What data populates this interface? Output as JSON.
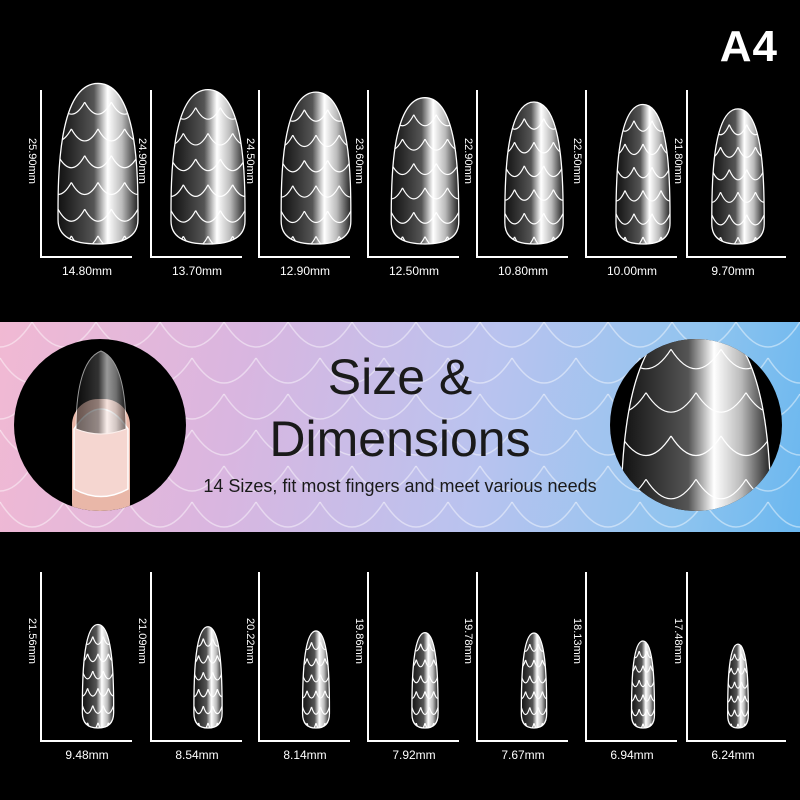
{
  "badge": "A4",
  "banner": {
    "title_line1": "Size &",
    "title_line2": "Dimensions",
    "subtitle": "14 Sizes, fit most fingers and meet various needs",
    "gradient_colors": [
      "#f1b9d3",
      "#b9c3ef",
      "#6ab7ef"
    ]
  },
  "top_row": [
    {
      "height": "25.90mm",
      "width": "14.80mm",
      "h": 25.9,
      "w": 14.8
    },
    {
      "height": "24.90mm",
      "width": "13.70mm",
      "h": 24.9,
      "w": 13.7
    },
    {
      "height": "24.50mm",
      "width": "12.90mm",
      "h": 24.5,
      "w": 12.9
    },
    {
      "height": "23.60mm",
      "width": "12.50mm",
      "h": 23.6,
      "w": 12.5
    },
    {
      "height": "22.90mm",
      "width": "10.80mm",
      "h": 22.9,
      "w": 10.8
    },
    {
      "height": "22.50mm",
      "width": "10.00mm",
      "h": 22.5,
      "w": 10.0
    },
    {
      "height": "21.80mm",
      "width": "9.70mm",
      "h": 21.8,
      "w": 9.7
    }
  ],
  "bottom_row": [
    {
      "height": "21.56mm",
      "width": "9.48mm",
      "h": 21.56,
      "w": 9.48
    },
    {
      "height": "21.09mm",
      "width": "8.54mm",
      "h": 21.09,
      "w": 8.54
    },
    {
      "height": "20.22mm",
      "width": "8.14mm",
      "h": 20.22,
      "w": 8.14
    },
    {
      "height": "19.86mm",
      "width": "7.92mm",
      "h": 19.86,
      "w": 7.92
    },
    {
      "height": "19.78mm",
      "width": "7.67mm",
      "h": 19.78,
      "w": 7.67
    },
    {
      "height": "18.13mm",
      "width": "6.94mm",
      "h": 18.13,
      "w": 6.94
    },
    {
      "height": "17.48mm",
      "width": "6.24mm",
      "h": 17.48,
      "w": 6.24
    }
  ]
}
